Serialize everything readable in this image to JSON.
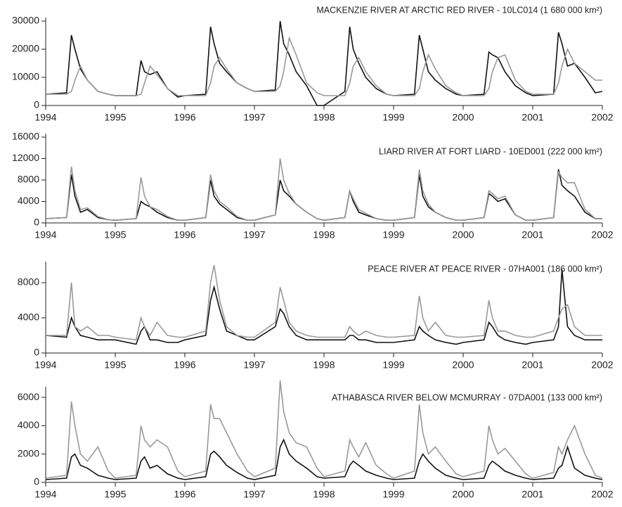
{
  "chart_data": [
    {
      "type": "line",
      "title": "MACKENZIE RIVER AT ARCTIC RED RIVER - 10LC014 (1 680 000 km²)",
      "x": [
        1994,
        1994.3,
        1994.37,
        1994.42,
        1994.5,
        1994.6,
        1994.75,
        1994.9,
        1995,
        1995.3,
        1995.37,
        1995.42,
        1995.5,
        1995.6,
        1995.75,
        1995.9,
        1996,
        1996.3,
        1996.37,
        1996.42,
        1996.5,
        1996.6,
        1996.75,
        1996.9,
        1997,
        1997.3,
        1997.37,
        1997.42,
        1997.5,
        1997.6,
        1997.75,
        1997.9,
        1998,
        1998.3,
        1998.37,
        1998.42,
        1998.5,
        1998.6,
        1998.75,
        1998.9,
        1999,
        1999.3,
        1999.37,
        1999.42,
        1999.5,
        1999.6,
        1999.75,
        1999.9,
        2000,
        2000.3,
        2000.37,
        2000.42,
        2000.5,
        2000.6,
        2000.75,
        2000.9,
        2001,
        2001.3,
        2001.37,
        2001.42,
        2001.5,
        2001.6,
        2001.75,
        2001.9,
        2002
      ],
      "xlim": [
        1994,
        2002
      ],
      "xticks": [
        1994,
        1995,
        1996,
        1997,
        1998,
        1999,
        2000,
        2001,
        2002
      ],
      "ylim": [
        0,
        30000
      ],
      "yticks": [
        0,
        10000,
        20000,
        30000
      ],
      "series": [
        {
          "color": "#111111",
          "values": [
            4000,
            4500,
            25000,
            20000,
            13000,
            9000,
            5000,
            4000,
            3500,
            3500,
            16000,
            12000,
            11000,
            12000,
            6000,
            3000,
            3500,
            4000,
            28000,
            22000,
            15000,
            12000,
            8000,
            6000,
            5000,
            5500,
            30000,
            22000,
            18000,
            12000,
            7000,
            0,
            0,
            5000,
            28000,
            20000,
            15000,
            10000,
            6000,
            4000,
            3500,
            4000,
            25000,
            20000,
            12000,
            9000,
            6000,
            4000,
            3500,
            4000,
            19000,
            18000,
            17000,
            12000,
            7000,
            4500,
            3500,
            4000,
            26000,
            22000,
            14000,
            15000,
            10000,
            4500,
            5000
          ]
        },
        {
          "color": "#999999",
          "values": [
            4000,
            4000,
            5000,
            9000,
            14000,
            9000,
            5000,
            4000,
            3500,
            3500,
            4000,
            8000,
            14000,
            11000,
            6000,
            3500,
            3500,
            3500,
            8000,
            14000,
            17000,
            13000,
            8000,
            6000,
            5000,
            5000,
            7000,
            12000,
            24000,
            18000,
            8000,
            4500,
            3500,
            3500,
            8000,
            14000,
            17000,
            12000,
            7000,
            4000,
            3500,
            3500,
            6000,
            12000,
            18000,
            13000,
            7000,
            4500,
            3500,
            3500,
            6000,
            12000,
            17000,
            18000,
            9000,
            5000,
            4000,
            4000,
            8000,
            14000,
            20000,
            15000,
            12000,
            9000,
            9000
          ]
        }
      ]
    },
    {
      "type": "line",
      "title": "LIARD RIVER AT FORT LIARD - 10ED001 (222 000 km²)",
      "x": [
        1994,
        1994.3,
        1994.37,
        1994.42,
        1994.5,
        1994.6,
        1994.75,
        1994.9,
        1995,
        1995.3,
        1995.37,
        1995.42,
        1995.5,
        1995.6,
        1995.75,
        1995.9,
        1996,
        1996.3,
        1996.37,
        1996.42,
        1996.5,
        1996.6,
        1996.75,
        1996.9,
        1997,
        1997.3,
        1997.37,
        1997.42,
        1997.5,
        1997.6,
        1997.75,
        1997.9,
        1998,
        1998.3,
        1998.37,
        1998.42,
        1998.5,
        1998.6,
        1998.75,
        1998.9,
        1999,
        1999.3,
        1999.37,
        1999.42,
        1999.5,
        1999.6,
        1999.75,
        1999.9,
        2000,
        2000.3,
        2000.37,
        2000.42,
        2000.5,
        2000.6,
        2000.75,
        2000.9,
        2001,
        2001.3,
        2001.37,
        2001.42,
        2001.5,
        2001.6,
        2001.75,
        2001.9,
        2002
      ],
      "xlim": [
        1994,
        2002
      ],
      "xticks": [
        1994,
        1995,
        1996,
        1997,
        1998,
        1999,
        2000,
        2001,
        2002
      ],
      "ylim": [
        0,
        16000
      ],
      "yticks": [
        0,
        4000,
        8000,
        12000,
        16000
      ],
      "series": [
        {
          "color": "#111111",
          "values": [
            800,
            1000,
            9000,
            5000,
            2000,
            2500,
            1000,
            600,
            500,
            800,
            4000,
            3500,
            3000,
            2000,
            1000,
            500,
            500,
            1000,
            8000,
            5000,
            3500,
            2500,
            1000,
            500,
            500,
            1500,
            8000,
            6000,
            5000,
            3500,
            2000,
            800,
            500,
            1000,
            6000,
            4000,
            2000,
            1500,
            800,
            500,
            500,
            1000,
            9000,
            5000,
            3000,
            2000,
            1000,
            500,
            500,
            1000,
            5500,
            5000,
            4000,
            4500,
            1500,
            500,
            500,
            1000,
            10000,
            7000,
            6000,
            5000,
            2000,
            800,
            800
          ]
        },
        {
          "color": "#999999",
          "values": [
            800,
            1000,
            10500,
            6000,
            2500,
            2800,
            1200,
            600,
            500,
            800,
            8500,
            5000,
            3000,
            2500,
            1200,
            500,
            500,
            1000,
            9000,
            6000,
            4000,
            3000,
            1200,
            500,
            500,
            1500,
            12000,
            8000,
            5500,
            3500,
            2000,
            800,
            500,
            1000,
            6000,
            4500,
            2500,
            1800,
            800,
            500,
            500,
            1000,
            10000,
            6000,
            3500,
            2000,
            1000,
            500,
            500,
            1000,
            6000,
            5500,
            4500,
            5000,
            1500,
            500,
            500,
            1000,
            9500,
            8500,
            7500,
            7500,
            2500,
            800,
            800
          ]
        }
      ]
    },
    {
      "type": "line",
      "title": "PEACE RIVER AT PEACE RIVER - 07HA001 (186 000 km²)",
      "x": [
        1994,
        1994.3,
        1994.37,
        1994.42,
        1994.5,
        1994.6,
        1994.75,
        1994.9,
        1995,
        1995.3,
        1995.37,
        1995.42,
        1995.5,
        1995.6,
        1995.75,
        1995.9,
        1996,
        1996.3,
        1996.37,
        1996.42,
        1996.5,
        1996.6,
        1996.75,
        1996.9,
        1997,
        1997.3,
        1997.37,
        1997.42,
        1997.5,
        1997.6,
        1997.75,
        1997.9,
        1998,
        1998.3,
        1998.37,
        1998.42,
        1998.5,
        1998.6,
        1998.75,
        1998.9,
        1999,
        1999.3,
        1999.37,
        1999.42,
        1999.5,
        1999.6,
        1999.75,
        1999.9,
        2000,
        2000.3,
        2000.37,
        2000.42,
        2000.5,
        2000.6,
        2000.75,
        2000.9,
        2001,
        2001.3,
        2001.37,
        2001.42,
        2001.5,
        2001.6,
        2001.75,
        2001.9,
        2002
      ],
      "xlim": [
        1994,
        2002
      ],
      "xticks": [
        1994,
        1995,
        1996,
        1997,
        1998,
        1999,
        2000,
        2001,
        2002
      ],
      "ylim": [
        0,
        10000
      ],
      "yticks": [
        0,
        4000,
        8000
      ],
      "series": [
        {
          "color": "#111111",
          "values": [
            2000,
            1800,
            4000,
            3000,
            2000,
            1800,
            1500,
            1500,
            1500,
            1000,
            2500,
            3000,
            1500,
            1500,
            1200,
            1200,
            1500,
            2000,
            6000,
            7500,
            5000,
            2500,
            2000,
            1500,
            1500,
            3000,
            5000,
            4500,
            3000,
            2000,
            1500,
            1500,
            1500,
            1500,
            2000,
            2000,
            1500,
            1500,
            1200,
            1200,
            1200,
            1500,
            3000,
            2500,
            2000,
            1500,
            1200,
            1000,
            1200,
            1500,
            3500,
            3000,
            2000,
            1500,
            1200,
            1000,
            1200,
            1500,
            3000,
            9500,
            3000,
            2000,
            1500,
            1500,
            1500
          ]
        },
        {
          "color": "#999999",
          "values": [
            2000,
            2000,
            8000,
            3000,
            2500,
            3000,
            2000,
            2000,
            1800,
            1500,
            4000,
            3000,
            2000,
            3500,
            2000,
            1800,
            1800,
            2500,
            8000,
            10000,
            6000,
            3000,
            2000,
            1800,
            1800,
            3500,
            7500,
            6000,
            3500,
            2500,
            2000,
            1800,
            1800,
            1800,
            3000,
            2500,
            2000,
            2500,
            2000,
            1800,
            1800,
            2000,
            6500,
            4000,
            2500,
            3500,
            2000,
            1800,
            1800,
            2000,
            6000,
            4000,
            2500,
            2500,
            2000,
            1800,
            1800,
            2500,
            4000,
            5000,
            5500,
            3000,
            2000,
            2000,
            2000
          ]
        }
      ]
    },
    {
      "type": "line",
      "title": "ATHABASCA RIVER BELOW MCMURRAY - 07DA001 (133 000 km²)",
      "x": [
        1994,
        1994.3,
        1994.37,
        1994.42,
        1994.5,
        1994.6,
        1994.75,
        1994.9,
        1995,
        1995.3,
        1995.37,
        1995.42,
        1995.5,
        1995.6,
        1995.75,
        1995.9,
        1996,
        1996.3,
        1996.37,
        1996.42,
        1996.5,
        1996.6,
        1996.75,
        1996.9,
        1997,
        1997.3,
        1997.37,
        1997.42,
        1997.5,
        1997.6,
        1997.75,
        1997.9,
        1998,
        1998.3,
        1998.37,
        1998.42,
        1998.5,
        1998.6,
        1998.75,
        1998.9,
        1999,
        1999.3,
        1999.37,
        1999.42,
        1999.5,
        1999.6,
        1999.75,
        1999.9,
        2000,
        2000.3,
        2000.37,
        2000.42,
        2000.5,
        2000.6,
        2000.75,
        2000.9,
        2001,
        2001.3,
        2001.37,
        2001.42,
        2001.5,
        2001.6,
        2001.75,
        2001.9,
        2002
      ],
      "xlim": [
        1994,
        2002
      ],
      "xticks": [
        1994,
        1995,
        1996,
        1997,
        1998,
        1999,
        2000,
        2001,
        2002
      ],
      "ylim": [
        0,
        6500
      ],
      "yticks": [
        0,
        2000,
        4000,
        6000
      ],
      "series": [
        {
          "color": "#111111",
          "values": [
            200,
            300,
            1800,
            2000,
            1200,
            1000,
            500,
            300,
            200,
            300,
            1500,
            1800,
            1000,
            1200,
            600,
            300,
            200,
            400,
            2000,
            2200,
            1800,
            1200,
            700,
            300,
            200,
            500,
            2500,
            3000,
            2000,
            1500,
            1000,
            400,
            300,
            400,
            1200,
            1500,
            1200,
            800,
            500,
            300,
            200,
            300,
            1500,
            2000,
            1500,
            1000,
            500,
            300,
            200,
            300,
            1200,
            1500,
            1200,
            800,
            500,
            300,
            200,
            300,
            1000,
            1200,
            2500,
            1000,
            500,
            300,
            200
          ]
        },
        {
          "color": "#999999",
          "values": [
            300,
            500,
            5700,
            4000,
            2000,
            1500,
            2500,
            800,
            300,
            500,
            4000,
            3000,
            2500,
            3000,
            2500,
            800,
            400,
            800,
            5500,
            4500,
            4500,
            3500,
            2000,
            800,
            400,
            1000,
            7200,
            5000,
            3500,
            2800,
            2500,
            1000,
            400,
            800,
            3000,
            2500,
            1800,
            2800,
            1200,
            600,
            300,
            800,
            5500,
            3500,
            2000,
            2500,
            1500,
            600,
            400,
            800,
            4000,
            3000,
            2000,
            2400,
            1500,
            600,
            300,
            700,
            2500,
            2000,
            3000,
            4000,
            2000,
            500,
            300
          ]
        }
      ]
    }
  ]
}
